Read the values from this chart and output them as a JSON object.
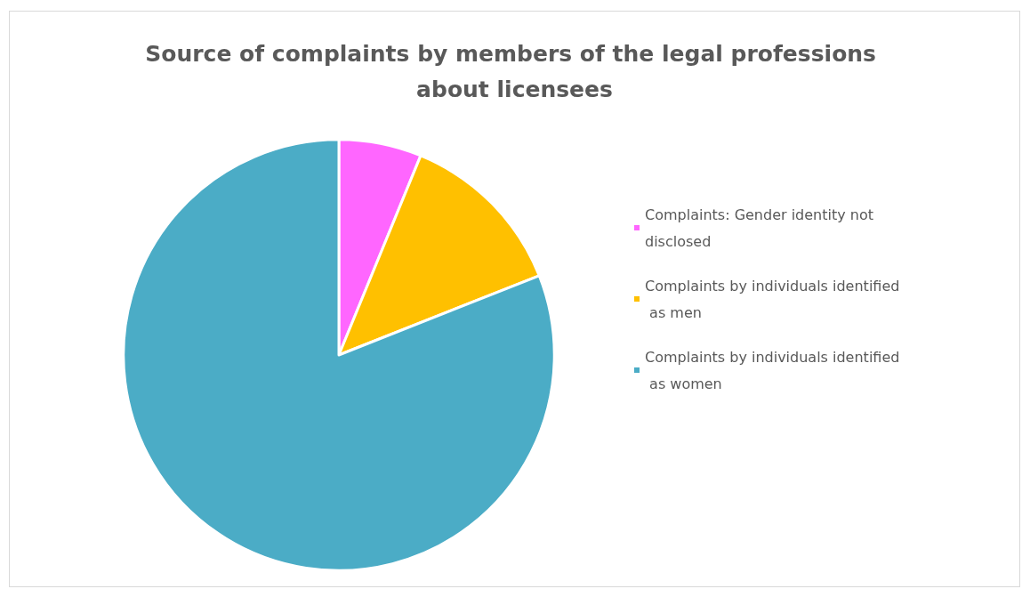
{
  "chart_data": {
    "type": "pie",
    "title": "Source of complaints by members of the legal professions about licensees",
    "categories": [
      "Complaints: Gender identity not disclosed",
      "Complaints by individuals identified as men",
      "Complaints by individuals identified as women"
    ],
    "values": [
      6.2,
      12.8,
      81
    ],
    "colors": [
      "#ff66ff",
      "#ffc000",
      "#4bacc6"
    ],
    "legend": "right"
  }
}
